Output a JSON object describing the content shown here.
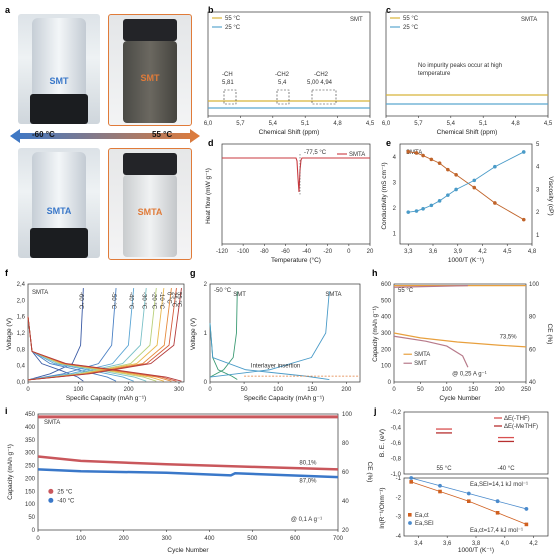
{
  "panel_labels": {
    "a": "a",
    "b": "b",
    "c": "c",
    "d": "d",
    "e": "e",
    "f": "f",
    "g": "g",
    "h": "h",
    "i": "i",
    "j": "j"
  },
  "panel_a": {
    "top_left": "SMT",
    "top_right": "SMT",
    "bottom_left": "SMTA",
    "bottom_right": "SMTA",
    "temp_cold": "-60 °C",
    "temp_hot": "55 °C",
    "colors": {
      "cold": "#3a78c9",
      "hot": "#e07b39"
    }
  },
  "chart_data": [
    {
      "id": "b",
      "type": "line",
      "subtitle": "SMT",
      "xlabel": "Chemical Shift (ppm)",
      "xlim": [
        6.0,
        4.5
      ],
      "xticks": [
        "6,0",
        "5,7",
        "5,4",
        "5,1",
        "4,8",
        "4,5"
      ],
      "series": [
        {
          "name": "55 °C",
          "color": "#d8b43a",
          "x": [
            6.0,
            4.5
          ],
          "y": [
            1,
            1
          ]
        },
        {
          "name": "25 °C",
          "color": "#5aa7cf",
          "x": [
            6.0,
            4.5
          ],
          "y": [
            0,
            0
          ]
        }
      ],
      "annotations": [
        {
          "text": "-CH",
          "value": "5,81"
        },
        {
          "text": "-CH2",
          "value": "5,4"
        },
        {
          "text": "-CH2",
          "value": "5,00   4,94"
        }
      ]
    },
    {
      "id": "c",
      "type": "line",
      "subtitle": "SMTA",
      "xlabel": "Chemical Shift (ppm)",
      "xlim": [
        6.0,
        4.5
      ],
      "xticks": [
        "6,0",
        "5,7",
        "5,4",
        "5,1",
        "4,8",
        "4,5"
      ],
      "series": [
        {
          "name": "55 °C",
          "color": "#d8b43a",
          "x": [
            6.0,
            4.5
          ],
          "y": [
            1,
            1
          ]
        },
        {
          "name": "25 °C",
          "color": "#5aa7cf",
          "x": [
            6.0,
            4.5
          ],
          "y": [
            0,
            0
          ]
        }
      ],
      "annotation": "No impurity peaks occur at high temperature"
    },
    {
      "id": "d",
      "type": "line",
      "xlabel": "Temperature (°C)",
      "ylabel": "Heat flow (mW g⁻¹)",
      "xlim": [
        -120,
        20
      ],
      "xticks": [
        "-120",
        "-100",
        "-80",
        "-60",
        "-40",
        "-20",
        "0",
        "20"
      ],
      "legend": "SMTA",
      "annotation": "-77,5 °C",
      "series": [
        {
          "name": "SMTA",
          "color": "#c9393f"
        }
      ]
    },
    {
      "id": "e",
      "type": "line",
      "subtitle": "SMTA",
      "xlabel": "1000/T (K⁻¹)",
      "ylabel": "Conductivity (mS cm⁻¹)",
      "y2label": "Viscosity (cP)",
      "xlim": [
        3.2,
        4.8
      ],
      "ylim": [
        0.6,
        4.5
      ],
      "y2lim": [
        0.6,
        5.0
      ],
      "xticks": [
        "3,3",
        "3,6",
        "3,9",
        "4,2",
        "4,5",
        "4,8"
      ],
      "yticks": [
        "1",
        "2",
        "3",
        "4"
      ],
      "y2ticks": [
        "1",
        "2",
        "3",
        "4",
        "5"
      ],
      "series": [
        {
          "name": "Conductivity",
          "color": "#c0642a",
          "x": [
            3.3,
            3.4,
            3.48,
            3.58,
            3.68,
            3.78,
            3.88,
            4.1,
            4.35,
            4.7
          ],
          "y": [
            4.2,
            4.15,
            4.05,
            3.9,
            3.75,
            3.5,
            3.3,
            2.8,
            2.2,
            1.55
          ]
        },
        {
          "name": "Viscosity",
          "color": "#4a9bc8",
          "x": [
            3.3,
            3.4,
            3.48,
            3.58,
            3.68,
            3.78,
            3.88,
            4.1,
            4.35,
            4.7
          ],
          "y": [
            2.0,
            2.05,
            2.15,
            2.3,
            2.5,
            2.75,
            3.0,
            3.4,
            4.0,
            4.65
          ]
        }
      ]
    },
    {
      "id": "f",
      "type": "line",
      "subtitle": "SMTA",
      "xlabel": "Specific Capacity (mAh g⁻¹)",
      "ylabel": "Voltage (V)",
      "xlim": [
        0,
        310
      ],
      "ylim": [
        0,
        2.4
      ],
      "xticks": [
        "0",
        "100",
        "200",
        "300"
      ],
      "yticks": [
        "0,0",
        "0,4",
        "0,8",
        "1,2",
        "1,6",
        "2,0",
        "2,4"
      ],
      "temps": [
        "-60 °C",
        "-50 °C",
        "-40 °C",
        "-30 °C",
        "-20 °C",
        "-10 °C",
        "0 °C",
        "25 °C",
        "55 °C"
      ],
      "colors": [
        "#3b5ba5",
        "#4a80c4",
        "#5aa5d4",
        "#7bc1c8",
        "#b9d07a",
        "#e9b84c",
        "#e58a3c",
        "#d45a3a",
        "#b33a3a"
      ],
      "capacities": [
        110,
        175,
        210,
        235,
        255,
        270,
        285,
        295,
        305
      ]
    },
    {
      "id": "g",
      "type": "line",
      "xlabel": "Specific Capacity (mAh g⁻¹)",
      "ylabel": "Voltage (V)",
      "xlim": [
        0,
        220
      ],
      "ylim": [
        0,
        2.0
      ],
      "xticks": [
        "0",
        "50",
        "100",
        "150",
        "200"
      ],
      "yticks": [
        "0",
        "1",
        "2"
      ],
      "title_temp": "-50 °C",
      "annotation": "Interlayer insertion",
      "series": [
        {
          "name": "SMT",
          "color": "#3a9a72",
          "capacity": 40
        },
        {
          "name": "SMTA",
          "color": "#4a9bc8",
          "capacity": 175
        }
      ]
    },
    {
      "id": "h",
      "type": "line",
      "xlabel": "Cycle Number",
      "ylabel": "Capacity (mAh g⁻¹)",
      "y2label": "CE (%)",
      "xlim": [
        0,
        250
      ],
      "ylim": [
        0,
        600
      ],
      "y2lim": [
        40,
        100
      ],
      "xticks": [
        "0",
        "50",
        "100",
        "150",
        "200",
        "250"
      ],
      "yticks": [
        "0",
        "100",
        "200",
        "300",
        "400",
        "500",
        "600"
      ],
      "y2ticks": [
        "40",
        "60",
        "80",
        "100"
      ],
      "title_temp": "55 °C",
      "retention": "73,5%",
      "rate": "@ 0,25 A g⁻¹",
      "series": [
        {
          "name": "SMTA",
          "color": "#e8a03e"
        },
        {
          "name": "SMT",
          "color": "#b77a8a"
        }
      ]
    },
    {
      "id": "i",
      "type": "line",
      "subtitle": "SMTA",
      "xlabel": "Cycle Number",
      "ylabel": "Capacity (mAh g⁻¹)",
      "y2label": "CE (%)",
      "xlim": [
        0,
        700
      ],
      "ylim": [
        0,
        450
      ],
      "y2lim": [
        20,
        100
      ],
      "xticks": [
        "0",
        "100",
        "200",
        "300",
        "400",
        "500",
        "600",
        "700"
      ],
      "yticks": [
        "0",
        "50",
        "100",
        "150",
        "200",
        "250",
        "300",
        "350",
        "400",
        "450"
      ],
      "y2ticks": [
        "20",
        "40",
        "60",
        "80",
        "100"
      ],
      "rate": "@ 0,1 A g⁻¹",
      "series": [
        {
          "name": "25 °C",
          "color": "#c9575c",
          "retention": "80,1%"
        },
        {
          "name": "-40 °C",
          "color": "#3a78c9",
          "retention": "87,0%"
        }
      ]
    },
    {
      "id": "j_top",
      "type": "bar",
      "ylabel": "B. E. (eV)",
      "ylim": [
        -1.0,
        -0.2
      ],
      "yticks": [
        "-0,2",
        "-0,4",
        "-0,6",
        "-0,8",
        "-1,0"
      ],
      "categories": [
        "55 °C",
        "-40 °C"
      ],
      "series": [
        {
          "name": "ΔE(-THF)",
          "color": "#d85050",
          "values": [
            -0.42,
            -0.53
          ]
        },
        {
          "name": "ΔE(-MeTHF)",
          "color": "#b73030",
          "values": [
            -0.47,
            -0.58
          ]
        }
      ]
    },
    {
      "id": "j_bottom",
      "type": "scatter",
      "xlabel": "1000/T (K⁻¹)",
      "ylabel": "ln(R⁻¹/Ohm⁻¹)",
      "xlim": [
        3.3,
        4.3
      ],
      "ylim": [
        -4,
        -1
      ],
      "xticks": [
        "3,4",
        "3,6",
        "3,8",
        "4,0",
        "4,2"
      ],
      "yticks": [
        "-1",
        "-2",
        "-3",
        "-4"
      ],
      "series": [
        {
          "name": "Ea,ct",
          "color": "#d06020",
          "label": "Ea,ct=17,4 kJ mol⁻¹",
          "x": [
            3.35,
            3.55,
            3.75,
            3.95,
            4.15
          ],
          "y": [
            -1.2,
            -1.7,
            -2.2,
            -2.8,
            -3.4
          ]
        },
        {
          "name": "Ea,SEI",
          "color": "#4a8acc",
          "label": "Ea,SEI=14,1 kJ mol⁻¹",
          "x": [
            3.35,
            3.55,
            3.75,
            3.95,
            4.15
          ],
          "y": [
            -1.0,
            -1.4,
            -1.8,
            -2.2,
            -2.6
          ]
        }
      ]
    }
  ]
}
